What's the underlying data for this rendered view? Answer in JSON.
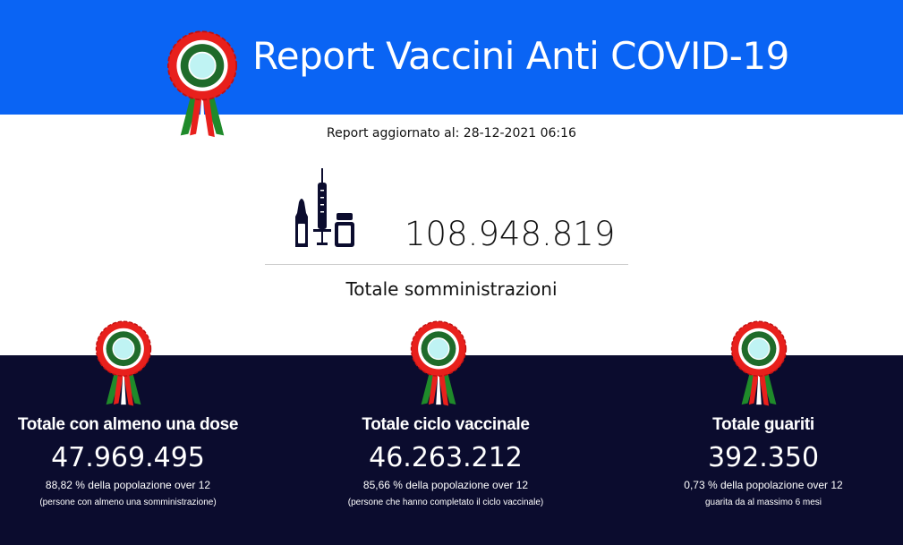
{
  "header": {
    "title": "Report Vaccini Anti COVID-19",
    "bg_color": "#0a64f4"
  },
  "updated": "Report aggiornato al: 28-12-2021 06:16",
  "summary": {
    "icon": "syringe-vials-icon",
    "value": "108.948.819",
    "label": "Totale somministrazioni"
  },
  "stats": [
    {
      "title": "Totale con almeno una dose",
      "value": "47.969.495",
      "percent": "88,82 % della popolazione over 12",
      "note": "(persone con almeno una somministrazione)"
    },
    {
      "title": "Totale ciclo vaccinale",
      "value": "46.263.212",
      "percent": "85,66 % della popolazione over 12",
      "note": "(persone che hanno completato il ciclo vaccinale)"
    },
    {
      "title": "Totale guariti",
      "value": "392.350",
      "percent": "0,73 % della popolazione over 12",
      "note": "guarita da al massimo 6 mesi"
    }
  ],
  "colors": {
    "dark_bg": "#0b0c2e",
    "rosette_red": "#e8201c",
    "rosette_green": "#1f6b2a"
  }
}
